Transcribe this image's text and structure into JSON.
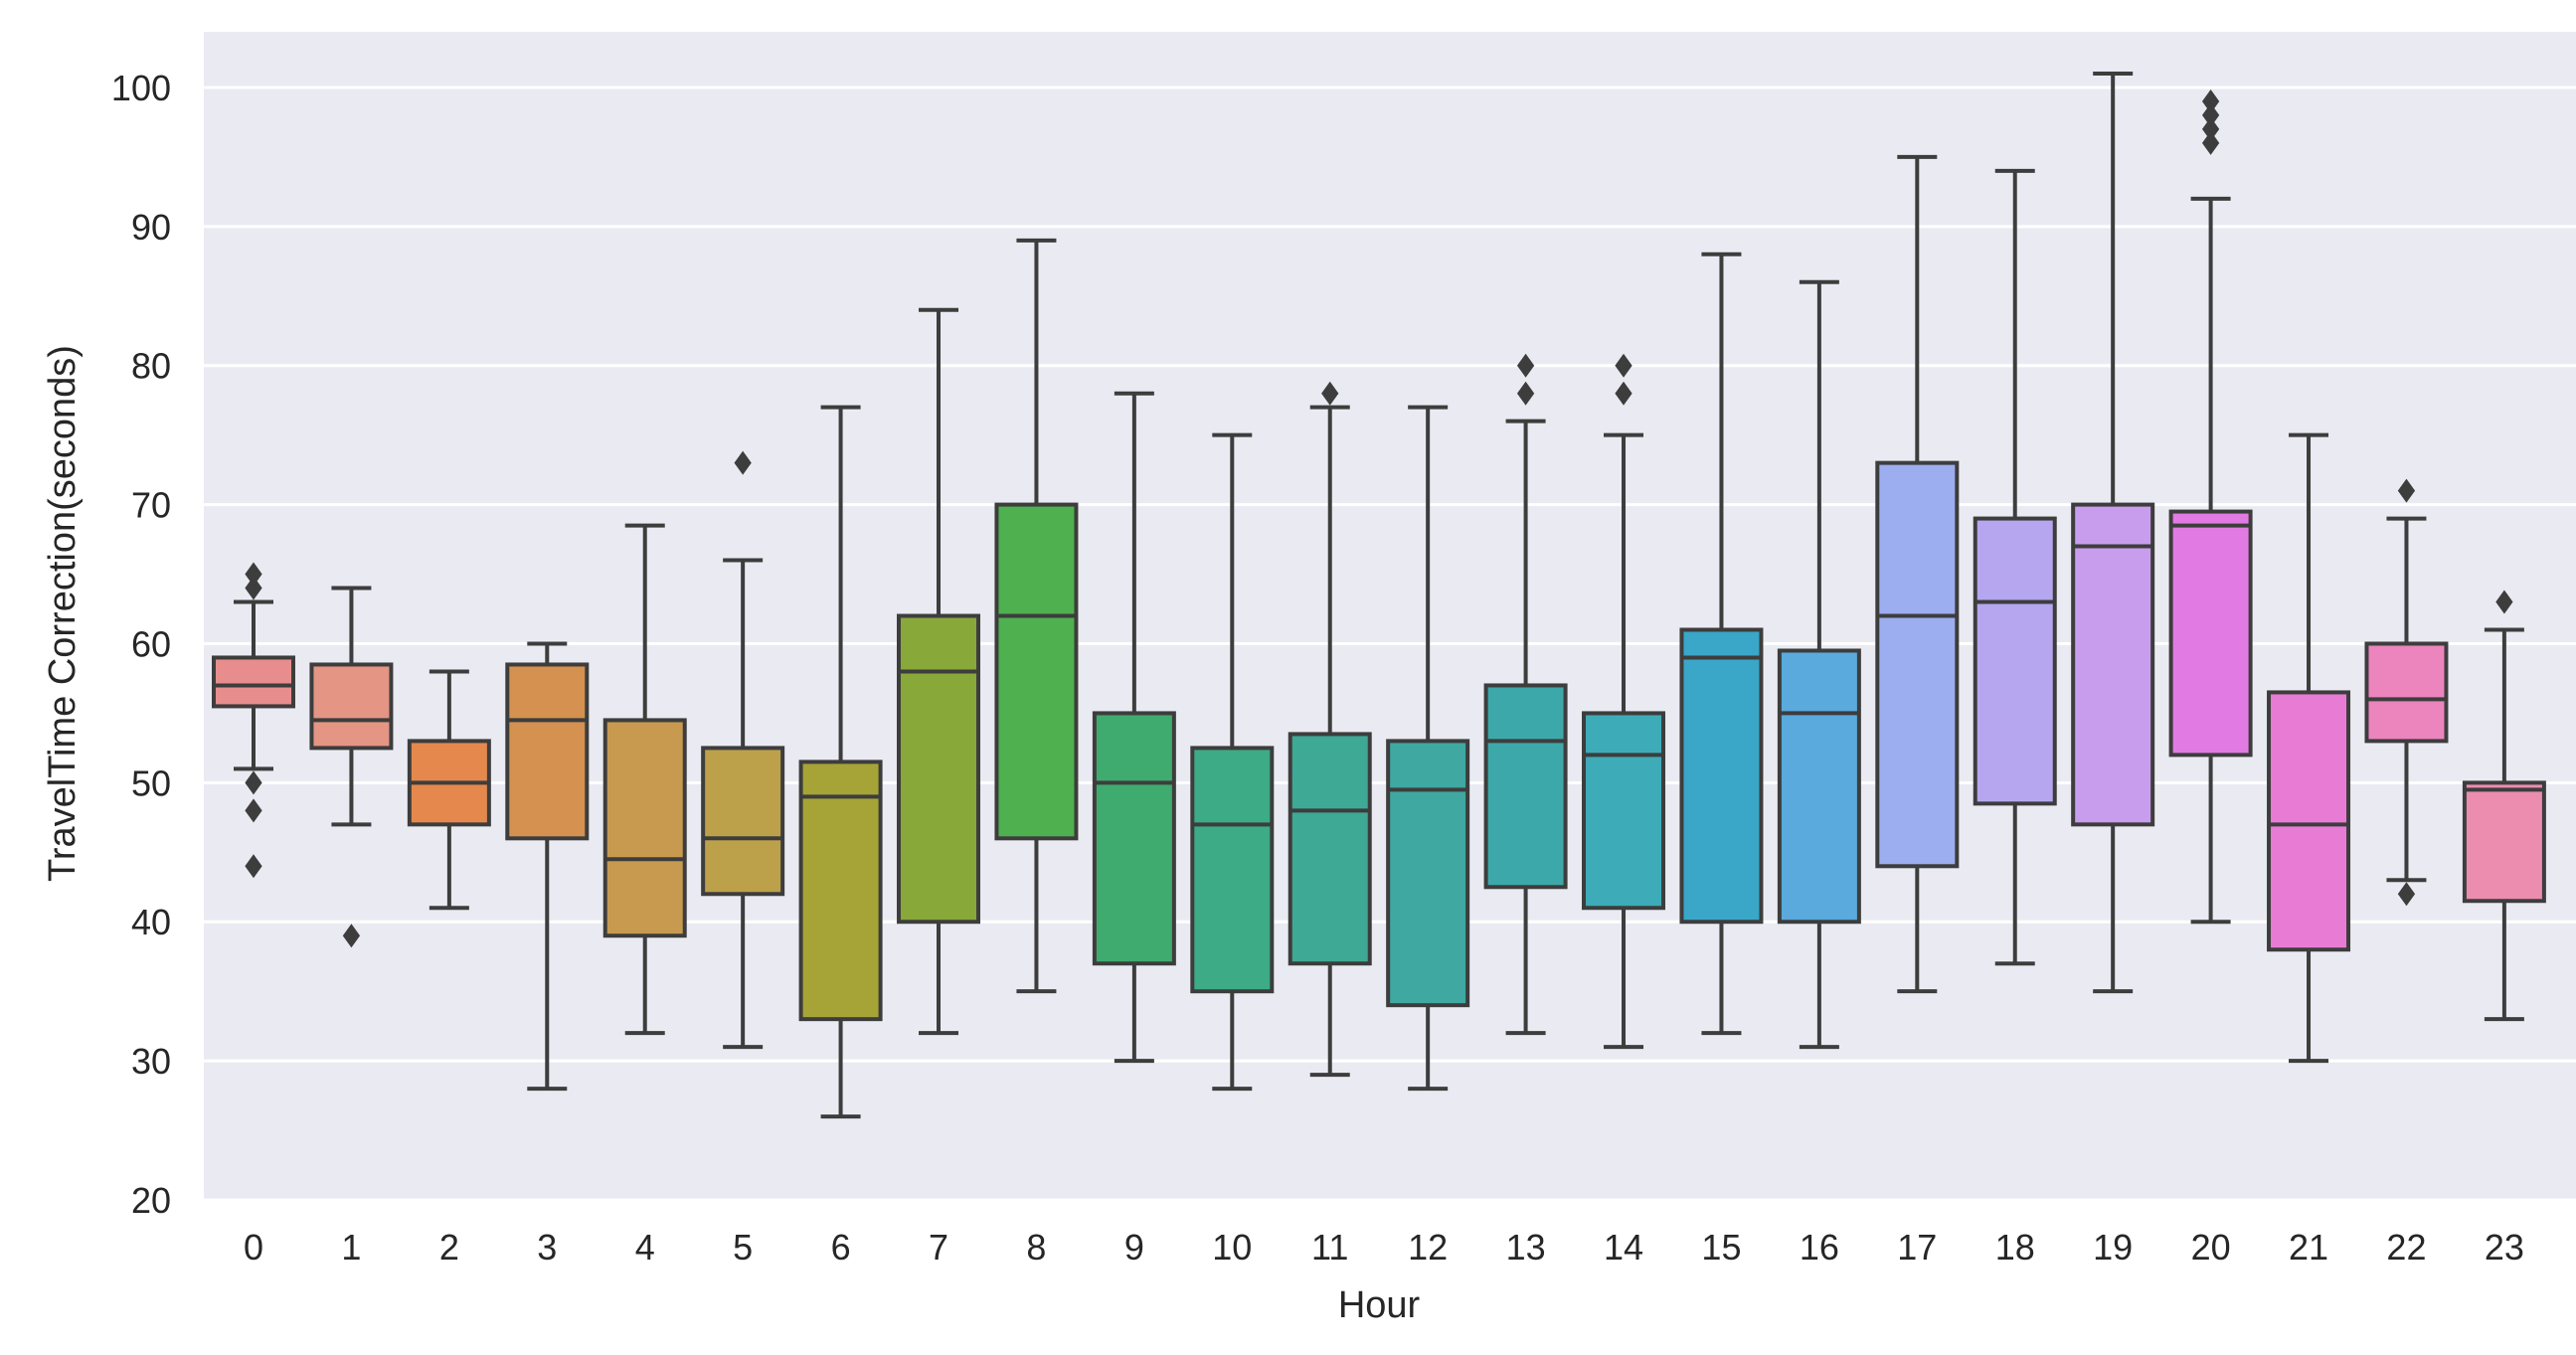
{
  "chart_data": {
    "type": "boxplot",
    "title": "",
    "xlabel": "Hour",
    "ylabel": "TravelTime Correction(seconds)",
    "ylim": [
      20,
      104
    ],
    "yticks": [
      20,
      30,
      40,
      50,
      60,
      70,
      80,
      90,
      100
    ],
    "grid": true,
    "categories": [
      "0",
      "1",
      "2",
      "3",
      "4",
      "5",
      "6",
      "7",
      "8",
      "9",
      "10",
      "11",
      "12",
      "13",
      "14",
      "15",
      "16",
      "17",
      "18",
      "19",
      "20",
      "21",
      "22",
      "23"
    ],
    "boxes": [
      {
        "category": "0",
        "color": "#e88d8d",
        "whisker_low": 51,
        "q1": 55.5,
        "median": 57,
        "q3": 59,
        "whisker_high": 63,
        "outliers": [
          44,
          48,
          50,
          64,
          65
        ]
      },
      {
        "category": "1",
        "color": "#e59584",
        "whisker_low": 47,
        "q1": 52.5,
        "median": 54.5,
        "q3": 58.5,
        "whisker_high": 64,
        "outliers": [
          39
        ]
      },
      {
        "category": "2",
        "color": "#e5884e",
        "whisker_low": 41,
        "q1": 47,
        "median": 50,
        "q3": 53,
        "whisker_high": 58,
        "outliers": []
      },
      {
        "category": "3",
        "color": "#d4914f",
        "whisker_low": 28,
        "q1": 46,
        "median": 54.5,
        "q3": 58.5,
        "whisker_high": 60,
        "outliers": []
      },
      {
        "category": "4",
        "color": "#c79a4f",
        "whisker_low": 32,
        "q1": 39,
        "median": 44.5,
        "q3": 54.5,
        "whisker_high": 68.5,
        "outliers": []
      },
      {
        "category": "5",
        "color": "#bda04a",
        "whisker_low": 31,
        "q1": 42,
        "median": 46,
        "q3": 52.5,
        "whisker_high": 66,
        "outliers": [
          73
        ]
      },
      {
        "category": "6",
        "color": "#a6a436",
        "whisker_low": 26,
        "q1": 33,
        "median": 49,
        "q3": 51.5,
        "whisker_high": 77,
        "outliers": []
      },
      {
        "category": "7",
        "color": "#88a83a",
        "whisker_low": 32,
        "q1": 40,
        "median": 58,
        "q3": 62,
        "whisker_high": 84,
        "outliers": []
      },
      {
        "category": "8",
        "color": "#4fb04f",
        "whisker_low": 35,
        "q1": 46,
        "median": 62,
        "q3": 70,
        "whisker_high": 89,
        "outliers": []
      },
      {
        "category": "9",
        "color": "#3fab6e",
        "whisker_low": 30,
        "q1": 37,
        "median": 50,
        "q3": 55,
        "whisker_high": 78,
        "outliers": []
      },
      {
        "category": "10",
        "color": "#3dab85",
        "whisker_low": 28,
        "q1": 35,
        "median": 47,
        "q3": 52.5,
        "whisker_high": 75,
        "outliers": []
      },
      {
        "category": "11",
        "color": "#3ea994",
        "whisker_low": 29,
        "q1": 37,
        "median": 48,
        "q3": 53.5,
        "whisker_high": 77,
        "outliers": [
          78
        ]
      },
      {
        "category": "12",
        "color": "#3ea8a1",
        "whisker_low": 28,
        "q1": 34,
        "median": 49.5,
        "q3": 53,
        "whisker_high": 77,
        "outliers": []
      },
      {
        "category": "13",
        "color": "#3da8aa",
        "whisker_low": 32,
        "q1": 42.5,
        "median": 53,
        "q3": 57,
        "whisker_high": 76,
        "outliers": [
          78,
          80
        ]
      },
      {
        "category": "14",
        "color": "#3eabb8",
        "whisker_low": 31,
        "q1": 41,
        "median": 52,
        "q3": 55,
        "whisker_high": 75,
        "outliers": [
          78,
          80
        ]
      },
      {
        "category": "15",
        "color": "#3aa6c8",
        "whisker_low": 32,
        "q1": 40,
        "median": 59,
        "q3": 61,
        "whisker_high": 88,
        "outliers": []
      },
      {
        "category": "16",
        "color": "#5aaadd",
        "whisker_low": 31,
        "q1": 40,
        "median": 55,
        "q3": 59.5,
        "whisker_high": 86,
        "outliers": []
      },
      {
        "category": "17",
        "color": "#9caef0",
        "whisker_low": 35,
        "q1": 44,
        "median": 62,
        "q3": 73,
        "whisker_high": 95,
        "outliers": []
      },
      {
        "category": "18",
        "color": "#b6a6f0",
        "whisker_low": 37,
        "q1": 48.5,
        "median": 63,
        "q3": 69,
        "whisker_high": 94,
        "outliers": []
      },
      {
        "category": "19",
        "color": "#c99ded",
        "whisker_low": 35,
        "q1": 47,
        "median": 67,
        "q3": 70,
        "whisker_high": 101,
        "outliers": []
      },
      {
        "category": "20",
        "color": "#e17be3",
        "whisker_low": 40,
        "q1": 52,
        "median": 68.5,
        "q3": 69.5,
        "whisker_high": 92,
        "outliers": [
          96,
          97,
          98,
          99
        ]
      },
      {
        "category": "21",
        "color": "#e87cd5",
        "whisker_low": 30,
        "q1": 38,
        "median": 47,
        "q3": 56.5,
        "whisker_high": 75,
        "outliers": []
      },
      {
        "category": "22",
        "color": "#ec84bd",
        "whisker_low": 43,
        "q1": 53,
        "median": 56,
        "q3": 60,
        "whisker_high": 69,
        "outliers": [
          42,
          71
        ]
      },
      {
        "category": "23",
        "color": "#ec8daf",
        "whisker_low": 33,
        "q1": 41.5,
        "median": 49.5,
        "q3": 50,
        "whisker_high": 61,
        "outliers": [
          63
        ]
      }
    ]
  }
}
